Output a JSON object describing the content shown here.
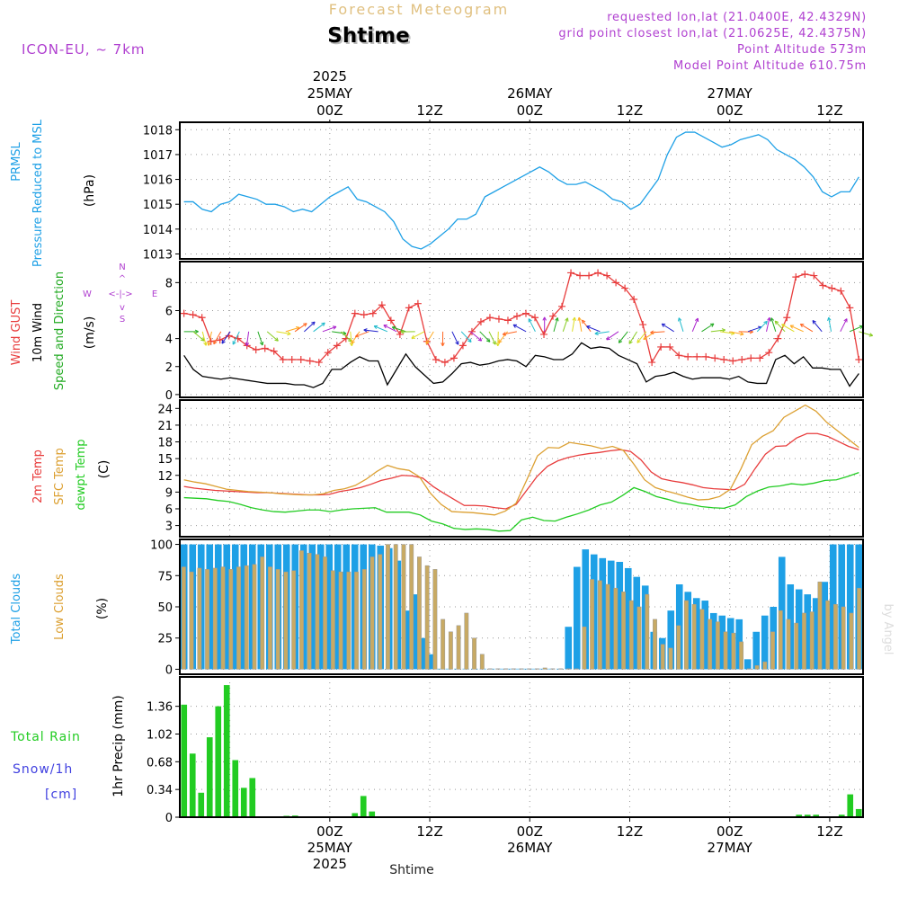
{
  "header": {
    "brand": "Forecast Meteogram",
    "location": "Shtime",
    "model": "ICON-EU, ~ 7km",
    "requested": "requested lon,lat (21.0400E, 42.4329N)",
    "grid_point": "grid point closest lon,lat (21.0625E, 42.4375N)",
    "altitude": "Point Altitude 573m",
    "model_altitude": "Model Point Altitude 610.75m"
  },
  "footer": {
    "location": "Shtime",
    "credit": "by Angel"
  },
  "colors": {
    "pressure": "#1ea0e6",
    "gust": "#e83c3c",
    "wind": "#000000",
    "dir": "#22aa22",
    "t2m": "#e83c3c",
    "tsfc": "#dca032",
    "dewpt": "#22cc22",
    "total_clouds": "#1ea0e6",
    "low_clouds": "#c8aa64",
    "rain": "#22cc22",
    "snow": "#4040e0",
    "header": "#b040d0",
    "brand": "#e0c080"
  },
  "time_axis": {
    "start": "2025-05-24T06:00Z",
    "end": "2025-05-27T16:00Z",
    "top_labels": [
      {
        "hour": 18,
        "lines": [
          "2025",
          "25MAY",
          "00Z"
        ]
      },
      {
        "hour": 30,
        "lines": [
          "12Z"
        ]
      },
      {
        "hour": 42,
        "lines": [
          "26MAY",
          "00Z"
        ]
      },
      {
        "hour": 54,
        "lines": [
          "12Z"
        ]
      },
      {
        "hour": 66,
        "lines": [
          "27MAY",
          "00Z"
        ]
      },
      {
        "hour": 78,
        "lines": [
          "12Z"
        ]
      }
    ],
    "bottom_labels": [
      {
        "hour": 18,
        "lines": [
          "00Z",
          "25MAY",
          "2025"
        ]
      },
      {
        "hour": 30,
        "lines": [
          "12Z"
        ]
      },
      {
        "hour": 42,
        "lines": [
          "00Z",
          "26MAY"
        ]
      },
      {
        "hour": 54,
        "lines": [
          "12Z"
        ]
      },
      {
        "hour": 66,
        "lines": [
          "00Z",
          "27MAY"
        ]
      },
      {
        "hour": 78,
        "lines": [
          "12Z"
        ]
      }
    ]
  },
  "chart_data": [
    {
      "type": "line",
      "title": "PRMSL Pressure Reduced to MSL",
      "ylabel": "(hPa)",
      "ylim": [
        1012.8,
        1018.3
      ],
      "yticks": [
        1013,
        1014,
        1015,
        1016,
        1017,
        1018
      ],
      "series": [
        {
          "name": "PRMSL",
          "values": [
            1015.1,
            1015.1,
            1014.8,
            1014.7,
            1015.0,
            1015.1,
            1015.4,
            1015.3,
            1015.2,
            1015.0,
            1015.0,
            1014.9,
            1014.7,
            1014.8,
            1014.7,
            1015.0,
            1015.3,
            1015.5,
            1015.7,
            1015.2,
            1015.1,
            1014.9,
            1014.7,
            1014.3,
            1013.6,
            1013.3,
            1013.2,
            1013.4,
            1013.7,
            1014.0,
            1014.4,
            1014.4,
            1014.6,
            1015.3,
            1015.5,
            1015.7,
            1015.9,
            1016.1,
            1016.3,
            1016.5,
            1016.3,
            1016.0,
            1015.8,
            1015.8,
            1015.9,
            1015.7,
            1015.5,
            1015.2,
            1015.1,
            1014.8,
            1015.0,
            1015.5,
            1016.0,
            1017.0,
            1017.7,
            1017.9,
            1017.9,
            1017.7,
            1017.5,
            1017.3,
            1017.4,
            1017.6,
            1017.7,
            1017.8,
            1017.6,
            1017.2,
            1017.0,
            1016.8,
            1016.5,
            1016.1,
            1015.5,
            1015.3,
            1015.5,
            1015.5,
            1016.1
          ]
        }
      ]
    },
    {
      "type": "line",
      "title": "Wind GUST / 10m Wind Speed and Direction",
      "ylabel": "(m/s)",
      "ylim": [
        -0.2,
        9.5
      ],
      "yticks": [
        0,
        2,
        4,
        6,
        8
      ],
      "compass": {
        "north": "N",
        "south": "S",
        "west": "W",
        "east": "E"
      },
      "series": [
        {
          "name": "Wind GUST",
          "values": [
            5.8,
            5.7,
            5.5,
            3.8,
            3.9,
            4.2,
            4.0,
            3.5,
            3.2,
            3.3,
            3.1,
            2.5,
            2.5,
            2.5,
            2.4,
            2.3,
            3.0,
            3.5,
            4.0,
            5.8,
            5.7,
            5.8,
            6.4,
            5.3,
            4.3,
            6.2,
            6.5,
            3.8,
            2.5,
            2.3,
            2.6,
            3.5,
            4.5,
            5.2,
            5.5,
            5.4,
            5.3,
            5.6,
            5.8,
            5.5,
            4.3,
            5.6,
            6.3,
            8.7,
            8.5,
            8.5,
            8.7,
            8.5,
            8.0,
            7.6,
            6.8,
            5.0,
            2.3,
            3.4,
            3.4,
            2.8,
            2.7,
            2.7,
            2.7,
            2.6,
            2.5,
            2.4,
            2.5,
            2.6,
            2.6,
            3.0,
            4.0,
            5.5,
            8.4,
            8.6,
            8.5,
            7.8,
            7.6,
            7.4,
            6.2,
            2.5
          ]
        },
        {
          "name": "10m Wind",
          "values": [
            2.8,
            1.8,
            1.3,
            1.2,
            1.1,
            1.2,
            1.1,
            1.0,
            0.9,
            0.8,
            0.8,
            0.8,
            0.7,
            0.7,
            0.5,
            0.8,
            1.8,
            1.8,
            2.3,
            2.7,
            2.4,
            2.4,
            0.7,
            1.8,
            2.9,
            2.0,
            1.4,
            0.8,
            0.9,
            1.5,
            2.2,
            2.3,
            2.1,
            2.2,
            2.4,
            2.5,
            2.4,
            2.0,
            2.8,
            2.7,
            2.5,
            2.5,
            2.9,
            3.7,
            3.3,
            3.4,
            3.3,
            2.8,
            2.5,
            2.2,
            0.9,
            1.3,
            1.4,
            1.6,
            1.3,
            1.1,
            1.2,
            1.2,
            1.2,
            1.1,
            1.3,
            0.9,
            0.8,
            0.8,
            2.5,
            2.8,
            2.2,
            2.7,
            1.9,
            1.9,
            1.8,
            1.8,
            0.6,
            1.5
          ]
        }
      ],
      "direction_arrows": "colored wind barbs along ~4.5 m/s"
    },
    {
      "type": "line",
      "title": "2m Temp / SFC Temp / dewpt Temp",
      "ylabel": "(C)",
      "ylim": [
        1,
        25.5
      ],
      "yticks": [
        3,
        6,
        9,
        12,
        15,
        18,
        21,
        24
      ],
      "series": [
        {
          "name": "2m Temp",
          "values": [
            10.0,
            9.7,
            9.5,
            9.3,
            9.2,
            9.1,
            9.0,
            8.9,
            8.9,
            8.8,
            8.7,
            8.6,
            8.5,
            8.5,
            8.6,
            9.1,
            9.4,
            9.8,
            10.4,
            11.1,
            11.5,
            12.0,
            11.9,
            11.5,
            10.0,
            8.8,
            7.7,
            6.6,
            6.6,
            6.5,
            6.2,
            6.0,
            6.8,
            9.3,
            11.8,
            13.6,
            14.6,
            15.2,
            15.6,
            15.9,
            16.1,
            16.4,
            16.6,
            16.3,
            14.8,
            12.6,
            11.4,
            11.0,
            10.7,
            10.3,
            9.8,
            9.6,
            9.5,
            9.4,
            10.4,
            13.2,
            15.8,
            17.2,
            17.3,
            18.7,
            19.5,
            19.5,
            19.0,
            18.1,
            17.2,
            16.6
          ]
        },
        {
          "name": "SFC Temp",
          "values": [
            11.2,
            10.8,
            10.5,
            10.0,
            9.5,
            9.3,
            9.1,
            9.0,
            8.9,
            8.7,
            8.6,
            8.5,
            8.5,
            8.7,
            9.3,
            9.6,
            10.2,
            11.3,
            12.7,
            13.8,
            13.2,
            12.9,
            11.7,
            8.8,
            6.8,
            5.5,
            5.4,
            5.3,
            5.1,
            4.9,
            5.6,
            7.0,
            11.2,
            15.5,
            17.0,
            16.9,
            17.9,
            17.6,
            17.3,
            16.8,
            17.2,
            16.5,
            14.0,
            11.2,
            9.8,
            9.2,
            8.7,
            8.1,
            7.6,
            7.7,
            8.2,
            9.5,
            13.2,
            17.5,
            19.0,
            20.0,
            22.4,
            23.5,
            24.6,
            23.5,
            21.5,
            20.0,
            18.5,
            17.0
          ]
        },
        {
          "name": "dewpt Temp",
          "values": [
            8.0,
            7.9,
            7.8,
            7.5,
            7.3,
            6.8,
            6.2,
            5.8,
            5.5,
            5.4,
            5.6,
            5.8,
            5.8,
            5.5,
            5.8,
            6.0,
            6.1,
            6.2,
            5.4,
            5.4,
            5.4,
            4.9,
            3.8,
            3.3,
            2.5,
            2.3,
            2.4,
            2.3,
            2.0,
            2.1,
            4.0,
            4.5,
            3.9,
            3.8,
            4.5,
            5.1,
            5.8,
            6.7,
            7.2,
            8.4,
            9.8,
            9.1,
            8.2,
            7.7,
            7.1,
            6.8,
            6.4,
            6.2,
            6.1,
            6.7,
            8.2,
            9.2,
            9.9,
            10.1,
            10.5,
            10.3,
            10.6,
            11.1,
            11.2,
            11.8,
            12.5
          ]
        }
      ]
    },
    {
      "type": "bar",
      "title": "Total Clouds / Low Clouds",
      "ylabel": "(%)",
      "ylim": [
        -4,
        104
      ],
      "yticks": [
        0,
        25,
        50,
        75,
        100
      ],
      "series": [
        {
          "name": "Total Clouds",
          "values": [
            100,
            100,
            100,
            100,
            100,
            100,
            100,
            100,
            100,
            100,
            100,
            100,
            100,
            100,
            100,
            100,
            100,
            100,
            100,
            100,
            100,
            100,
            100,
            99,
            97,
            87,
            47,
            60,
            25,
            12,
            0,
            0,
            0,
            0,
            0,
            0,
            0,
            0,
            0,
            0,
            0,
            0,
            0,
            0,
            0,
            34,
            82,
            96,
            92,
            89,
            87,
            86,
            81,
            74,
            67,
            30,
            25,
            47,
            68,
            62,
            57,
            55,
            45,
            43,
            41,
            40,
            8,
            30,
            43,
            50,
            90,
            68,
            64,
            60,
            57,
            70,
            100,
            100,
            100,
            100
          ]
        },
        {
          "name": "Low Clouds",
          "values": [
            82,
            78,
            81,
            80,
            81,
            82,
            80,
            82,
            83,
            84,
            90,
            82,
            80,
            78,
            79,
            95,
            93,
            92,
            90,
            79,
            78,
            78,
            78,
            80,
            90,
            92,
            100,
            100,
            100,
            100,
            90,
            83,
            80,
            40,
            30,
            35,
            45,
            25,
            12,
            0,
            0,
            0,
            0,
            0,
            0,
            0,
            1,
            0,
            0,
            0,
            0,
            34,
            72,
            71,
            68,
            65,
            62,
            55,
            50,
            60,
            40,
            20,
            17,
            35,
            55,
            52,
            48,
            40,
            38,
            30,
            29,
            22,
            0,
            3,
            6,
            30,
            47,
            40,
            37,
            45,
            46,
            70,
            55,
            52,
            50,
            45,
            65
          ]
        }
      ]
    },
    {
      "type": "bar",
      "title": "Total Rain / Snow/1h [cm]",
      "ylabel": "1hr Precip (mm)",
      "ylim": [
        0,
        1.72
      ],
      "yticks": [
        0,
        0.34,
        0.68,
        1.02,
        1.36
      ],
      "ytick_labels": [
        "0",
        "0.34",
        "0.68",
        "1.02",
        "1.36"
      ],
      "legend": {
        "rain": "Total Rain",
        "snow": "Snow/1h",
        "unit": "[cm]"
      },
      "series": [
        {
          "name": "Total Rain",
          "values": [
            1.38,
            0.78,
            0.3,
            0.98,
            1.36,
            1.62,
            0.7,
            0.36,
            0.48,
            0,
            0,
            0,
            0.01,
            0.02,
            0,
            0,
            0,
            0,
            0,
            0,
            0.05,
            0.26,
            0.07,
            0,
            0,
            0,
            0,
            0,
            0,
            0,
            0,
            0,
            0,
            0,
            0,
            0,
            0,
            0,
            0,
            0,
            0,
            0,
            0,
            0,
            0,
            0,
            0,
            0,
            0,
            0,
            0,
            0,
            0,
            0,
            0,
            0,
            0,
            0,
            0,
            0,
            0,
            0,
            0,
            0,
            0,
            0,
            0,
            0,
            0,
            0,
            0,
            0,
            0.03,
            0.03,
            0.03,
            0,
            0,
            0.03,
            0.28,
            0.1
          ]
        }
      ]
    }
  ]
}
